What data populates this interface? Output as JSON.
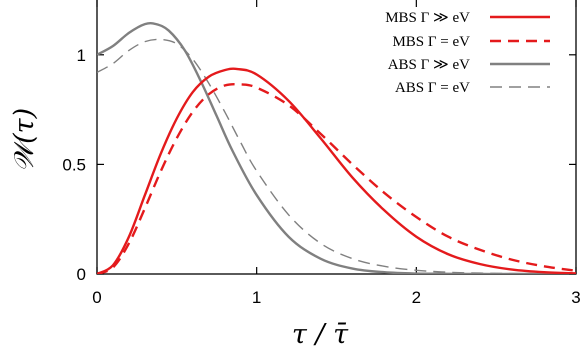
{
  "chart_data": {
    "type": "line",
    "title": "",
    "xlabel": "τ / τ̄",
    "ylabel": "𝒲(τ)",
    "xlim": [
      0,
      3
    ],
    "ylim": [
      0,
      1.25
    ],
    "xticks": [
      0,
      1,
      2,
      3
    ],
    "yticks": [
      0,
      0.5,
      1
    ],
    "ytick_labels": [
      "0",
      "0.5",
      "1"
    ],
    "xtick_labels": [
      "0",
      "1",
      "2",
      "3"
    ],
    "grid": false,
    "legend_position": "top-right",
    "series": [
      {
        "name": "MBS Γ ≫ eV",
        "color": "#e41a1c",
        "dash": "solid",
        "width": "thick",
        "x": [
          0,
          0.1,
          0.2,
          0.3,
          0.4,
          0.5,
          0.6,
          0.7,
          0.8,
          0.88,
          1.0,
          1.2,
          1.4,
          1.6,
          1.8,
          2.0,
          2.2,
          2.4,
          2.6,
          2.8,
          3.0
        ],
        "y": [
          0,
          0.04,
          0.17,
          0.36,
          0.55,
          0.71,
          0.83,
          0.9,
          0.93,
          0.935,
          0.91,
          0.79,
          0.62,
          0.44,
          0.29,
          0.17,
          0.09,
          0.045,
          0.02,
          0.008,
          0.003
        ]
      },
      {
        "name": "MBS Γ = eV",
        "color": "#e41a1c",
        "dash": "dashed",
        "width": "thick",
        "x": [
          0,
          0.1,
          0.2,
          0.3,
          0.4,
          0.5,
          0.6,
          0.7,
          0.8,
          0.9,
          1.0,
          1.2,
          1.4,
          1.6,
          1.8,
          2.0,
          2.2,
          2.4,
          2.6,
          2.8,
          3.0
        ],
        "y": [
          0,
          0.03,
          0.14,
          0.3,
          0.47,
          0.62,
          0.74,
          0.82,
          0.86,
          0.865,
          0.85,
          0.77,
          0.64,
          0.5,
          0.37,
          0.26,
          0.17,
          0.11,
          0.065,
          0.035,
          0.015
        ]
      },
      {
        "name": "ABS Γ ≫ eV",
        "color": "#808080",
        "dash": "solid",
        "width": "thick",
        "x": [
          0,
          0.1,
          0.2,
          0.3,
          0.37,
          0.45,
          0.55,
          0.65,
          0.75,
          0.85,
          1.0,
          1.2,
          1.4,
          1.6,
          1.8,
          2.0,
          2.2,
          2.4,
          2.6,
          2.8,
          3.0
        ],
        "y": [
          1.0,
          1.04,
          1.1,
          1.14,
          1.14,
          1.11,
          1.02,
          0.88,
          0.72,
          0.56,
          0.36,
          0.17,
          0.07,
          0.025,
          0.008,
          0.002,
          0.001,
          0,
          0,
          0,
          0
        ]
      },
      {
        "name": "ABS Γ = eV",
        "color": "#808080",
        "dash": "dashed",
        "width": "thin",
        "x": [
          0,
          0.1,
          0.2,
          0.3,
          0.4,
          0.5,
          0.6,
          0.7,
          0.8,
          0.9,
          1.0,
          1.2,
          1.4,
          1.6,
          1.8,
          2.0,
          2.2,
          2.4,
          2.6,
          2.8,
          3.0
        ],
        "y": [
          0.92,
          0.96,
          1.02,
          1.06,
          1.07,
          1.05,
          0.98,
          0.87,
          0.74,
          0.6,
          0.47,
          0.27,
          0.14,
          0.07,
          0.035,
          0.017,
          0.008,
          0.004,
          0.002,
          0.001,
          0
        ]
      }
    ]
  }
}
